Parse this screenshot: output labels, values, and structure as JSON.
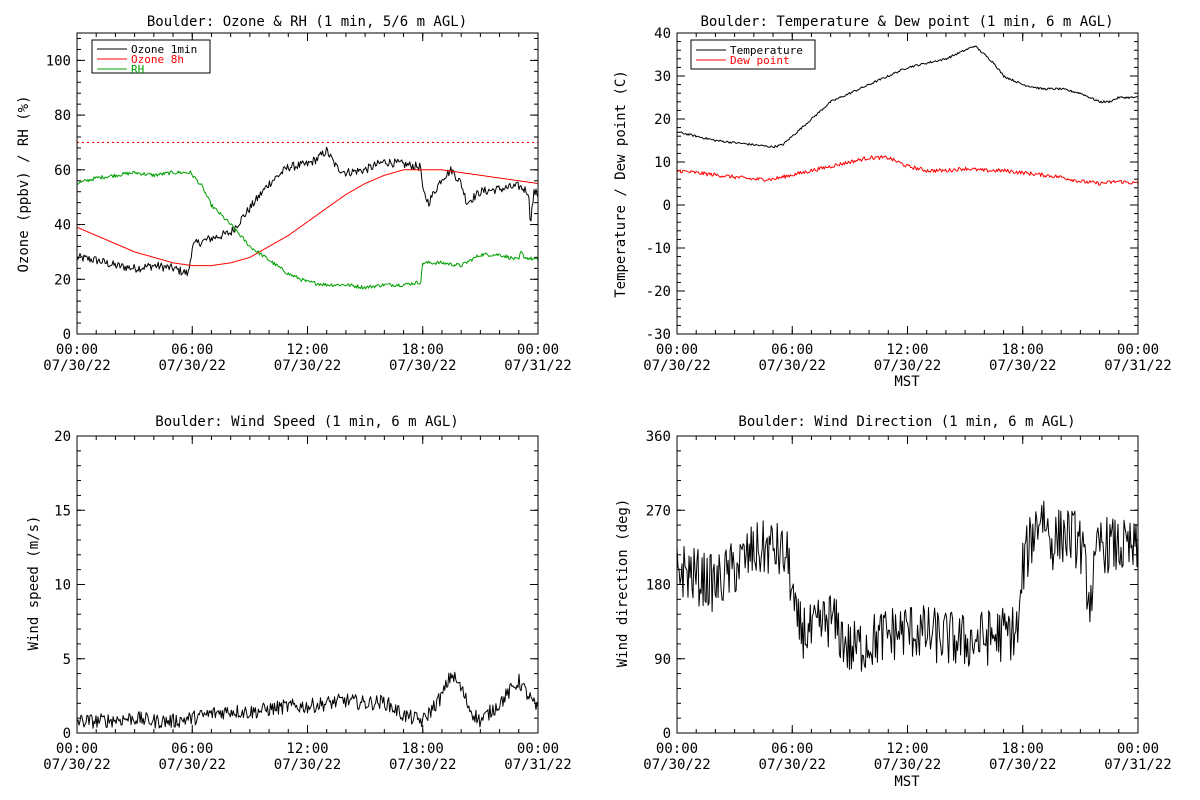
{
  "chart_data": [
    {
      "id": "ozone",
      "type": "line",
      "title": "Boulder: Ozone & RH (1 min, 5/6 m AGL)",
      "ylabel": "Ozone (ppbv) / RH (%)",
      "xlabel": "",
      "xlim": [
        0,
        24
      ],
      "ylim": [
        0,
        110
      ],
      "yticks": [
        0,
        20,
        40,
        60,
        80,
        100
      ],
      "x_ticks": [
        {
          "x": 0,
          "time": "00:00",
          "date": "07/30/22"
        },
        {
          "x": 6,
          "time": "06:00",
          "date": "07/30/22"
        },
        {
          "x": 12,
          "time": "12:00",
          "date": "07/30/22"
        },
        {
          "x": 18,
          "time": "18:00",
          "date": "07/30/22"
        },
        {
          "x": 24,
          "time": "00:00",
          "date": "07/31/22"
        }
      ],
      "legend_position": "top-left",
      "reference_line": {
        "y": 70,
        "color": "#ff0000",
        "style": "dotted"
      },
      "series": [
        {
          "name": "Ozone 1min",
          "color": "#000000",
          "noise": 1.6,
          "x": [
            0,
            1,
            2,
            3,
            4,
            5,
            5.8,
            6.0,
            6.2,
            7,
            8,
            9,
            10,
            11,
            12,
            12.5,
            13,
            13.5,
            14,
            15,
            16,
            17,
            17.9,
            18,
            18.3,
            19,
            19.5,
            20,
            20.3,
            21,
            22,
            23,
            23.5,
            23.6,
            23.8,
            24
          ],
          "y": [
            28,
            27,
            25,
            24,
            25,
            24,
            22,
            32,
            33,
            35,
            37,
            46,
            55,
            61,
            62,
            64,
            67,
            61,
            59,
            60,
            63,
            62,
            61,
            52,
            48,
            57,
            60,
            55,
            48,
            52,
            53,
            54,
            52,
            41,
            52,
            51
          ]
        },
        {
          "name": "Ozone 8h",
          "color": "#ff0000",
          "noise": 0,
          "x": [
            0,
            1,
            2,
            3,
            4,
            5,
            6,
            7,
            8,
            9,
            10,
            11,
            12,
            13,
            14,
            15,
            16,
            17,
            18,
            19,
            20,
            21,
            22,
            23,
            24
          ],
          "y": [
            39,
            36,
            33,
            30,
            28,
            26,
            25,
            25,
            26,
            28,
            32,
            36,
            41,
            46,
            51,
            55,
            58,
            60,
            60,
            60,
            59,
            58,
            57,
            56,
            55
          ]
        },
        {
          "name": "RH",
          "color": "#00a000",
          "noise": 0.7,
          "x": [
            0,
            1,
            2,
            3,
            4,
            5,
            5.9,
            6.5,
            7,
            8,
            9,
            10,
            11,
            12,
            13,
            14,
            15,
            16,
            17,
            17.9,
            18,
            19,
            20,
            20.5,
            21,
            22,
            23,
            23.1,
            23.3,
            24
          ],
          "y": [
            55,
            57,
            58,
            59,
            58,
            59,
            59,
            54,
            47,
            40,
            32,
            27,
            22,
            19,
            18,
            18,
            17,
            18,
            18,
            19,
            26,
            26,
            25,
            27,
            29,
            29,
            27,
            30,
            28,
            27
          ]
        }
      ]
    },
    {
      "id": "temperature",
      "type": "line",
      "title": "Boulder: Temperature & Dew point (1 min, 6 m AGL)",
      "ylabel": "Temperature / Dew point (C)",
      "xlabel": "MST",
      "xlim": [
        0,
        24
      ],
      "ylim": [
        -30,
        40
      ],
      "yticks": [
        -30,
        -20,
        -10,
        0,
        10,
        20,
        30,
        40
      ],
      "x_ticks": [
        {
          "x": 0,
          "time": "00:00",
          "date": "07/30/22"
        },
        {
          "x": 6,
          "time": "06:00",
          "date": "07/30/22"
        },
        {
          "x": 12,
          "time": "12:00",
          "date": "07/30/22"
        },
        {
          "x": 18,
          "time": "18:00",
          "date": "07/30/22"
        },
        {
          "x": 24,
          "time": "00:00",
          "date": "07/31/22"
        }
      ],
      "legend_position": "top-left",
      "series": [
        {
          "name": "Temperature",
          "color": "#000000",
          "noise": 0.25,
          "x": [
            0,
            1,
            2,
            3,
            4,
            5,
            5.5,
            6,
            7,
            8,
            9,
            10,
            11,
            12,
            13,
            14,
            15,
            15.5,
            16,
            16.5,
            17,
            18,
            19,
            20,
            21,
            22,
            22.5,
            23,
            24
          ],
          "y": [
            17,
            16,
            15,
            14.5,
            14,
            13.5,
            14,
            16,
            20,
            24,
            26,
            28,
            30,
            32,
            33,
            34,
            36,
            37,
            35,
            33,
            30,
            28,
            27,
            27,
            26,
            24,
            24,
            25,
            25
          ]
        },
        {
          "name": "Dew point",
          "color": "#ff0000",
          "noise": 0.45,
          "x": [
            0,
            1,
            2,
            3,
            4,
            5,
            6,
            7,
            8,
            9,
            10,
            11,
            12,
            13,
            14,
            15,
            16,
            17,
            18,
            19,
            20,
            21,
            22,
            23,
            24
          ],
          "y": [
            8,
            7.5,
            7,
            6.5,
            6,
            6,
            7,
            8,
            9,
            10,
            11,
            11,
            9,
            8,
            8,
            8.5,
            8,
            8,
            7.5,
            7,
            6.5,
            5.5,
            5,
            5.5,
            5
          ]
        }
      ]
    },
    {
      "id": "wind-speed",
      "type": "line",
      "title": "Boulder: Wind Speed (1 min, 6 m AGL)",
      "ylabel": "Wind speed (m/s)",
      "xlabel": "",
      "xlim": [
        0,
        24
      ],
      "ylim": [
        0,
        20
      ],
      "yticks": [
        0,
        5,
        10,
        15,
        20
      ],
      "x_ticks": [
        {
          "x": 0,
          "time": "00:00",
          "date": "07/30/22"
        },
        {
          "x": 6,
          "time": "06:00",
          "date": "07/30/22"
        },
        {
          "x": 12,
          "time": "12:00",
          "date": "07/30/22"
        },
        {
          "x": 18,
          "time": "18:00",
          "date": "07/30/22"
        },
        {
          "x": 24,
          "time": "00:00",
          "date": "07/31/22"
        }
      ],
      "legend_position": "none",
      "series": [
        {
          "name": "",
          "color": "#000000",
          "noise": 0.5,
          "floor": 0,
          "x": [
            0,
            1,
            2,
            3,
            4,
            5,
            6,
            7,
            8,
            9,
            10,
            11,
            12,
            13,
            14,
            15,
            16,
            17,
            18,
            19,
            19.5,
            20,
            20.5,
            21,
            22,
            23,
            23.5,
            24
          ],
          "y": [
            0.8,
            0.8,
            0.9,
            1.0,
            0.8,
            0.8,
            1.0,
            1.3,
            1.5,
            1.4,
            1.6,
            1.8,
            1.8,
            2.0,
            2.2,
            2.0,
            2.1,
            1.2,
            0.8,
            2.5,
            4.0,
            3.0,
            1.5,
            0.8,
            2.0,
            3.5,
            2.5,
            1.5
          ]
        }
      ]
    },
    {
      "id": "wind-direction",
      "type": "line",
      "title": "Boulder: Wind Direction (1 min, 6 m AGL)",
      "ylabel": "Wind direction (deg)",
      "xlabel": "MST",
      "xlim": [
        0,
        24
      ],
      "ylim": [
        0,
        360
      ],
      "yticks": [
        0,
        90,
        180,
        270,
        360
      ],
      "x_ticks": [
        {
          "x": 0,
          "time": "00:00",
          "date": "07/30/22"
        },
        {
          "x": 6,
          "time": "06:00",
          "date": "07/30/22"
        },
        {
          "x": 12,
          "time": "12:00",
          "date": "07/30/22"
        },
        {
          "x": 18,
          "time": "18:00",
          "date": "07/30/22"
        },
        {
          "x": 24,
          "time": "00:00",
          "date": "07/31/22"
        }
      ],
      "legend_position": "none",
      "series": [
        {
          "name": "",
          "color": "#000000",
          "noise": 35,
          "floor": 0,
          "ceil": 360,
          "x": [
            0,
            1,
            2,
            3,
            4,
            5,
            5.8,
            6.2,
            7,
            8,
            9,
            10,
            11,
            12,
            13,
            14,
            15,
            16,
            17,
            17.8,
            18,
            18.5,
            19,
            19.5,
            20,
            20.5,
            21,
            21.5,
            22,
            23,
            24
          ],
          "y": [
            200,
            190,
            180,
            200,
            220,
            225,
            210,
            130,
            120,
            140,
            100,
            110,
            120,
            125,
            120,
            115,
            110,
            115,
            120,
            125,
            200,
            240,
            270,
            230,
            240,
            240,
            230,
            160,
            230,
            225,
            220
          ]
        }
      ]
    }
  ]
}
